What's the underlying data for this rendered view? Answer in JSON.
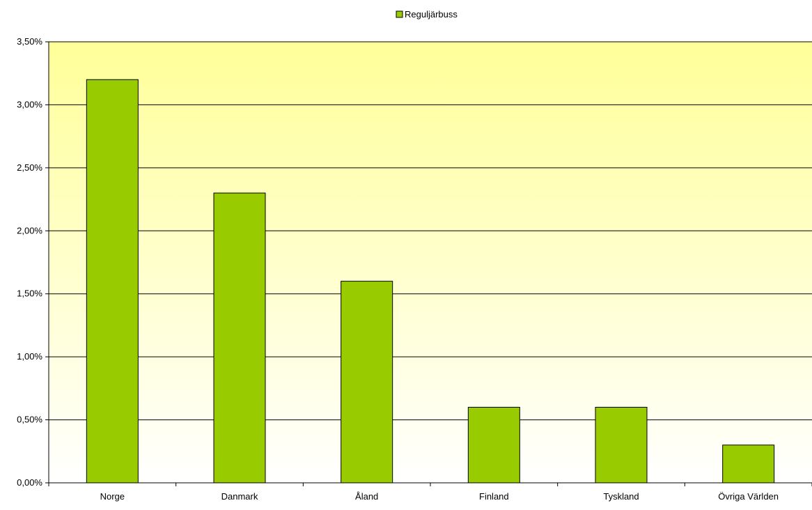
{
  "chart_data": {
    "type": "bar",
    "categories": [
      "Norge",
      "Danmark",
      "Åland",
      "Finland",
      "Tyskland",
      "Övriga Världen"
    ],
    "series": [
      {
        "name": "Reguljärbuss",
        "values": [
          3.2,
          2.3,
          1.6,
          0.6,
          0.6,
          0.3
        ]
      }
    ],
    "ylim": [
      0,
      3.5
    ],
    "yticks": [
      0,
      0.5,
      1.0,
      1.5,
      2.0,
      2.5,
      3.0,
      3.5
    ],
    "ytick_labels": [
      "0,00%",
      "0,50%",
      "1,00%",
      "1,50%",
      "2,00%",
      "2,50%",
      "3,00%",
      "3,50%"
    ],
    "grid": true,
    "legend_position": "top-center",
    "colors": {
      "bar": "#99cc00",
      "bar_stroke": "#000000",
      "plot_bg_top": "#ffff99",
      "plot_bg_bottom": "#ffffff",
      "gridline": "#000000"
    }
  }
}
